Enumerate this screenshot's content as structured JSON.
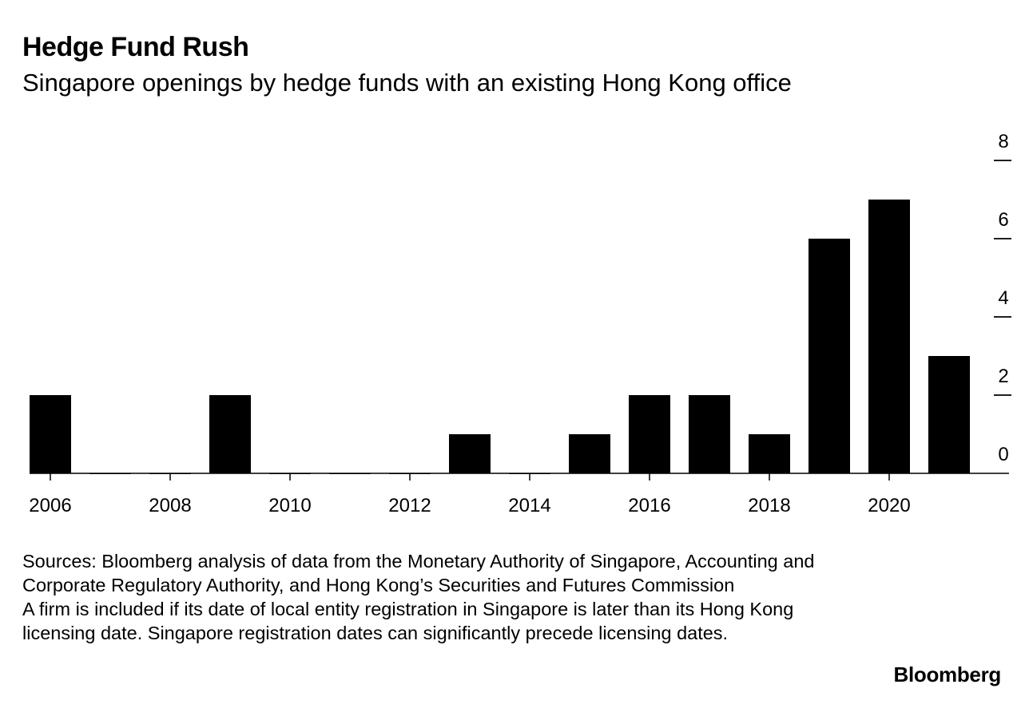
{
  "title": "Hedge Fund Rush",
  "subtitle": "Singapore openings by hedge funds with an existing Hong Kong office",
  "notes": {
    "sources": "Sources: Bloomberg analysis of data from the Monetary Authority of Singapore, Accounting and Corporate Regulatory Authority, and Hong Kong’s Securities and Futures Commission",
    "footnote": "A firm is included if its date of local entity registration in Singapore is later than its Hong Kong licensing date. Singapore registration dates can significantly precede licensing dates."
  },
  "brand": "Bloomberg",
  "colors": {
    "bar": "#000000",
    "axis": "#000000",
    "background": "#ffffff"
  },
  "chart_data": {
    "type": "bar",
    "title": "Hedge Fund Rush",
    "subtitle": "Singapore openings by hedge funds with an existing Hong Kong office",
    "xlabel": "",
    "ylabel": "",
    "categories": [
      2006,
      2007,
      2008,
      2009,
      2010,
      2011,
      2012,
      2013,
      2014,
      2015,
      2016,
      2017,
      2018,
      2019,
      2020,
      2021
    ],
    "values": [
      2,
      0,
      0,
      2,
      0,
      0,
      0,
      1,
      0,
      1,
      2,
      2,
      1,
      6,
      7,
      3
    ],
    "ylim": [
      0,
      8
    ],
    "y_ticks": [
      0,
      2,
      4,
      6,
      8
    ],
    "x_tick_labels": [
      "2006",
      "2008",
      "2010",
      "2012",
      "2014",
      "2016",
      "2018",
      "2020"
    ],
    "y_axis_position": "right",
    "grid": false,
    "legend": "none"
  }
}
